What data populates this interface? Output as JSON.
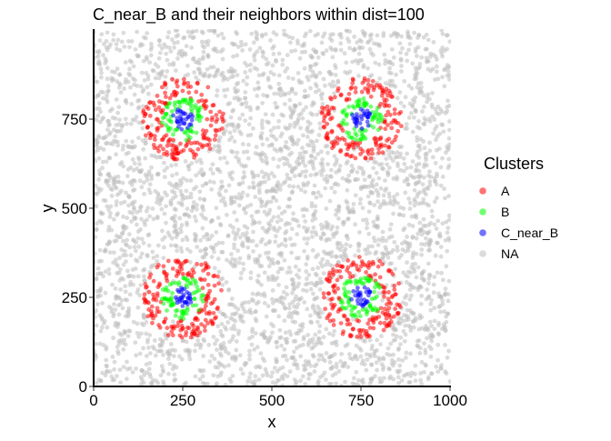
{
  "chart_data": {
    "type": "scatter",
    "title": "C_near_B and their neighbors within dist=100",
    "xlabel": "x",
    "ylabel": "y",
    "xlim": [
      0,
      1000
    ],
    "ylim": [
      0,
      1000
    ],
    "xticks": [
      0,
      250,
      500,
      750,
      1000
    ],
    "yticks": [
      0,
      250,
      500,
      750
    ],
    "grid": false,
    "legend": {
      "title": "Clusters",
      "position": "right",
      "entries": [
        {
          "label": "A",
          "color": "#ff0000"
        },
        {
          "label": "B",
          "color": "#00ff00"
        },
        {
          "label": "C_near_B",
          "color": "#0000ff"
        },
        {
          "label": "NA",
          "color": "#bebebe"
        }
      ]
    },
    "cluster_centers": [
      {
        "x": 250,
        "y": 750
      },
      {
        "x": 750,
        "y": 750
      },
      {
        "x": 250,
        "y": 250
      },
      {
        "x": 750,
        "y": 250
      }
    ],
    "ring_radii": {
      "C_near_B": [
        0,
        30
      ],
      "B": [
        30,
        60
      ],
      "A": [
        60,
        115
      ]
    },
    "point_counts_per_cluster": {
      "C_near_B": 30,
      "B": 70,
      "A": 170
    },
    "background_point_count": 3800,
    "background_color": "#bebebe",
    "point_alpha": 0.55
  }
}
